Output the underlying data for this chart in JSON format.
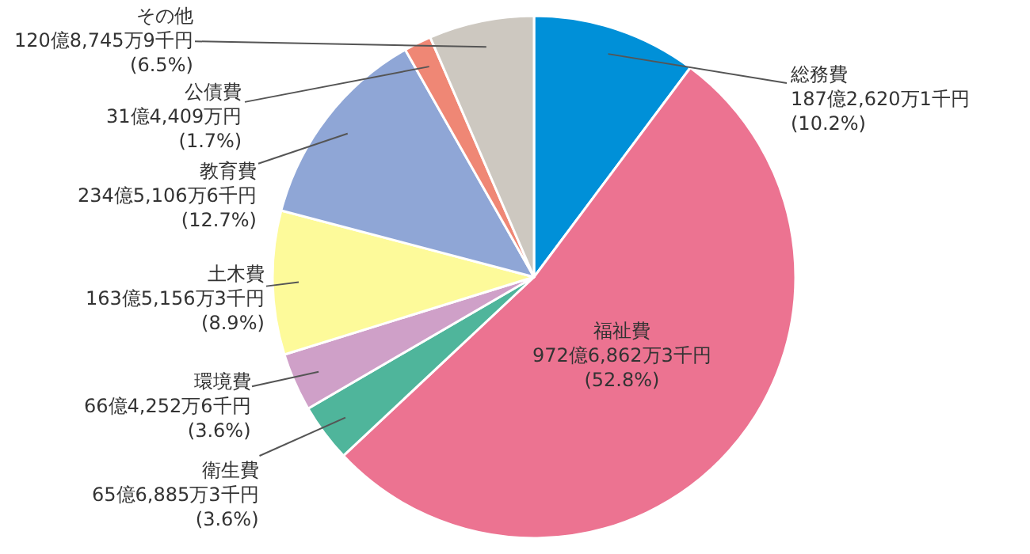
{
  "chart_data": {
    "type": "pie",
    "categories": [
      "総務費",
      "福祉費",
      "衛生費",
      "環境費",
      "土木費",
      "教育費",
      "公債費",
      "その他"
    ],
    "values": [
      10.2,
      52.8,
      3.6,
      3.6,
      8.9,
      12.7,
      1.7,
      6.5
    ],
    "colors": [
      "#0090d8",
      "#ec7391",
      "#4fb59b",
      "#cfa0c8",
      "#fdfa9a",
      "#8fa6d6",
      "#ef8775",
      "#cdc8c0"
    ],
    "value_labels": [
      "187億2,620万1千円\n(10.2%)",
      "972億6,862万3千円\n(52.8%)",
      "65億6,885万3千円\n(3.6%)",
      "66億4,252万6千円\n(3.6%)",
      "163億5,156万3千円\n(8.9%)",
      "234億5,106万6千円\n(12.7%)",
      "31億4,409万円\n(1.7%)",
      "120億8,745万9千円\n(6.5%)"
    ],
    "legend": false
  }
}
